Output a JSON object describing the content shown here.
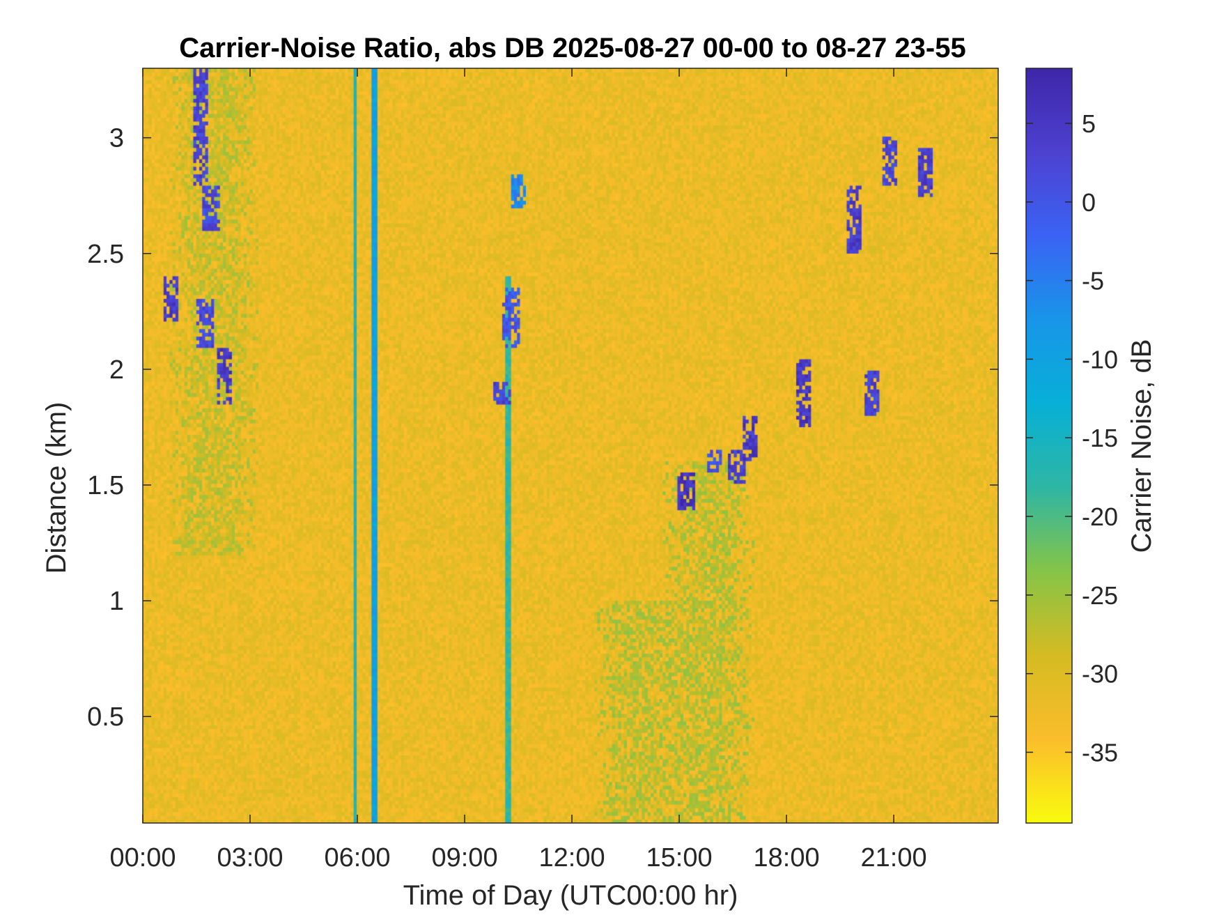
{
  "chart_data": {
    "type": "heatmap",
    "title": "Carrier-Noise Ratio, abs DB 2025-08-27 00-00 to 08-27 23-55",
    "xlabel": "Time of Day (UTC00:00 hr)",
    "ylabel": "Distance (km)",
    "x_ticks": [
      {
        "value": 0,
        "label": "00:00"
      },
      {
        "value": 3,
        "label": "03:00"
      },
      {
        "value": 6,
        "label": "06:00"
      },
      {
        "value": 9,
        "label": "09:00"
      },
      {
        "value": 12,
        "label": "12:00"
      },
      {
        "value": 15,
        "label": "15:00"
      },
      {
        "value": 18,
        "label": "18:00"
      },
      {
        "value": 21,
        "label": "21:00"
      }
    ],
    "y_ticks": [
      {
        "value": 0.5,
        "label": "0.5"
      },
      {
        "value": 1,
        "label": "1"
      },
      {
        "value": 1.5,
        "label": "1.5"
      },
      {
        "value": 2,
        "label": "2"
      },
      {
        "value": 2.5,
        "label": "2.5"
      },
      {
        "value": 3,
        "label": "3"
      }
    ],
    "xlim": [
      0,
      23.92
    ],
    "ylim": [
      0.04,
      3.3
    ],
    "colorbar": {
      "label": "Carrier Noise, dB",
      "range": [
        -39.5,
        8.5
      ],
      "ticks": [
        {
          "value": 5,
          "label": "5"
        },
        {
          "value": 0,
          "label": "0"
        },
        {
          "value": -5,
          "label": "-5"
        },
        {
          "value": -10,
          "label": "-10"
        },
        {
          "value": -15,
          "label": "-15"
        },
        {
          "value": -20,
          "label": "-20"
        },
        {
          "value": -25,
          "label": "-25"
        },
        {
          "value": -30,
          "label": "-30"
        },
        {
          "value": -35,
          "label": "-35"
        }
      ],
      "colormap": [
        "#f9fb0e",
        "#fbbd2b",
        "#d5bb22",
        "#86c447",
        "#2eb6a4",
        "#07b0d6",
        "#1895e8",
        "#3a63f4",
        "#4d41d0",
        "#3e26a8"
      ]
    },
    "background_level_db": -32,
    "features": [
      {
        "kind": "column",
        "time_h": 5.93,
        "range_km": [
          0.04,
          3.3
        ],
        "level_db": -16
      },
      {
        "kind": "column",
        "time_h": 6.45,
        "range_km": [
          0.04,
          3.3
        ],
        "level_db": -10
      },
      {
        "kind": "column",
        "time_h": 10.2,
        "range_km": [
          0.04,
          2.4
        ],
        "level_db": -18
      },
      {
        "kind": "blob",
        "time_h": 13.9,
        "range_km": [
          0.04,
          1.0
        ],
        "level_db": -26
      },
      {
        "kind": "blob",
        "time_h": 15.8,
        "range_km": [
          0.04,
          1.6
        ],
        "level_db": -26
      },
      {
        "kind": "blob",
        "time_h": 2.0,
        "range_km": [
          1.2,
          3.3
        ],
        "level_db": -27
      },
      {
        "kind": "cloud",
        "time_h": 1.6,
        "range_km": [
          2.8,
          3.3
        ],
        "level_db": 3
      },
      {
        "kind": "cloud",
        "time_h": 1.9,
        "range_km": [
          2.6,
          2.8
        ],
        "level_db": 2
      },
      {
        "kind": "cloud",
        "time_h": 0.8,
        "range_km": [
          2.2,
          2.4
        ],
        "level_db": 4
      },
      {
        "kind": "cloud",
        "time_h": 1.75,
        "range_km": [
          2.1,
          2.3
        ],
        "level_db": 2
      },
      {
        "kind": "cloud",
        "time_h": 2.3,
        "range_km": [
          1.85,
          2.1
        ],
        "level_db": 5
      },
      {
        "kind": "cloud",
        "time_h": 10.3,
        "range_km": [
          2.1,
          2.35
        ],
        "level_db": 0
      },
      {
        "kind": "cloud",
        "time_h": 10.5,
        "range_km": [
          2.7,
          2.85
        ],
        "level_db": -6
      },
      {
        "kind": "cloud",
        "time_h": 10.05,
        "range_km": [
          1.85,
          1.95
        ],
        "level_db": 3
      },
      {
        "kind": "cloud",
        "time_h": 15.2,
        "range_km": [
          1.4,
          1.55
        ],
        "level_db": 6
      },
      {
        "kind": "cloud",
        "time_h": 16.0,
        "range_km": [
          1.55,
          1.65
        ],
        "level_db": 0
      },
      {
        "kind": "cloud",
        "time_h": 16.6,
        "range_km": [
          1.5,
          1.65
        ],
        "level_db": 4
      },
      {
        "kind": "cloud",
        "time_h": 17.0,
        "range_km": [
          1.6,
          1.8
        ],
        "level_db": 5
      },
      {
        "kind": "cloud",
        "time_h": 18.5,
        "range_km": [
          1.75,
          2.05
        ],
        "level_db": 5
      },
      {
        "kind": "cloud",
        "time_h": 20.4,
        "range_km": [
          1.8,
          2.0
        ],
        "level_db": 3
      },
      {
        "kind": "cloud",
        "time_h": 19.9,
        "range_km": [
          2.5,
          2.8
        ],
        "level_db": 4
      },
      {
        "kind": "cloud",
        "time_h": 20.9,
        "range_km": [
          2.8,
          3.0
        ],
        "level_db": 2
      },
      {
        "kind": "cloud",
        "time_h": 21.9,
        "range_km": [
          2.75,
          2.95
        ],
        "level_db": 4
      }
    ]
  }
}
